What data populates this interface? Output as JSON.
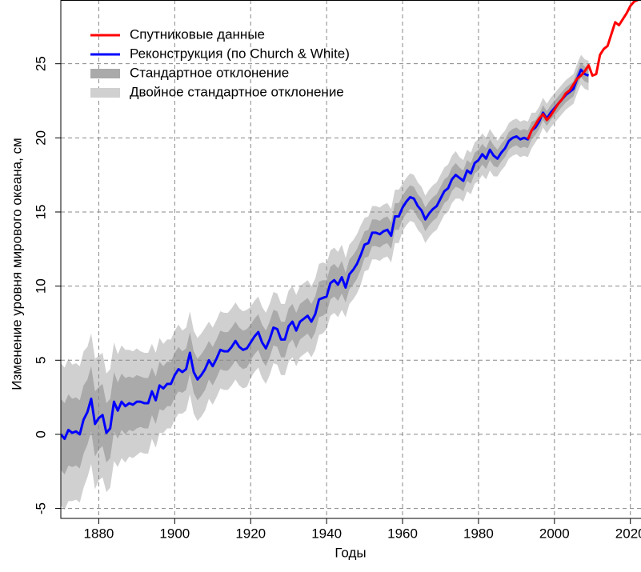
{
  "chart_data": {
    "type": "line",
    "xlabel": "Годы",
    "ylabel": "Изменение уровня мирового океана, см",
    "xlim": [
      1870,
      2022.8
    ],
    "xticks": [
      1880,
      1900,
      1920,
      1940,
      1960,
      1980,
      2000,
      2020
    ],
    "ylim": [
      -5.67,
      29.3
    ],
    "yticks": [
      -5,
      0,
      5,
      10,
      15,
      20,
      25
    ],
    "grid": true,
    "legend": "top-left",
    "series": [
      {
        "name": "Спутниковые данные",
        "color": "#ff0000",
        "x": [
          1993,
          1994,
          1995,
          1996,
          1997,
          1998,
          1999,
          2000,
          2001,
          2002,
          2003,
          2004,
          2005,
          2006,
          2007,
          2008,
          2009,
          2010,
          2011,
          2012,
          2013,
          2014,
          2015,
          2016,
          2017,
          2018,
          2019,
          2020,
          2021,
          2022
        ],
        "values": [
          19.9,
          20.5,
          20.9,
          21.3,
          21.6,
          21.2,
          21.5,
          21.9,
          22.3,
          22.6,
          23.0,
          23.2,
          23.6,
          24.0,
          24.2,
          24.5,
          24.9,
          24.2,
          24.3,
          25.6,
          26.0,
          26.2,
          27.0,
          27.8,
          27.6,
          28.0,
          28.4,
          28.9,
          29.2,
          29.3
        ]
      },
      {
        "name": "Реконструкция (по Church & White)",
        "color": "#0000ff",
        "x": [
          1870,
          1871,
          1872,
          1873,
          1874,
          1875,
          1876,
          1877,
          1878,
          1879,
          1880,
          1881,
          1882,
          1883,
          1884,
          1885,
          1886,
          1887,
          1888,
          1889,
          1890,
          1891,
          1892,
          1893,
          1894,
          1895,
          1896,
          1897,
          1898,
          1899,
          1900,
          1901,
          1902,
          1903,
          1904,
          1905,
          1906,
          1907,
          1908,
          1909,
          1910,
          1911,
          1912,
          1913,
          1914,
          1915,
          1916,
          1917,
          1918,
          1919,
          1920,
          1921,
          1922,
          1923,
          1924,
          1925,
          1926,
          1927,
          1928,
          1929,
          1930,
          1931,
          1932,
          1933,
          1934,
          1935,
          1936,
          1937,
          1938,
          1939,
          1940,
          1941,
          1942,
          1943,
          1944,
          1945,
          1946,
          1947,
          1948,
          1949,
          1950,
          1951,
          1952,
          1953,
          1954,
          1955,
          1956,
          1957,
          1958,
          1959,
          1960,
          1961,
          1962,
          1963,
          1964,
          1965,
          1966,
          1967,
          1968,
          1969,
          1970,
          1971,
          1972,
          1973,
          1974,
          1975,
          1976,
          1977,
          1978,
          1979,
          1980,
          1981,
          1982,
          1983,
          1984,
          1985,
          1986,
          1987,
          1988,
          1989,
          1990,
          1991,
          1992,
          1993,
          1994,
          1995,
          1996,
          1997,
          1998,
          1999,
          2000,
          2001,
          2002,
          2003,
          2004,
          2005,
          2006,
          2007,
          2008,
          2009
        ],
        "values": [
          0,
          -0.3,
          0.3,
          0.1,
          0.2,
          0,
          1.0,
          1.5,
          2.4,
          0.7,
          1.1,
          1.3,
          0.1,
          0.4,
          2.2,
          1.6,
          2.2,
          1.9,
          2.1,
          2.0,
          2.2,
          2.2,
          2.1,
          2.1,
          2.9,
          2.3,
          3.3,
          3.1,
          3.4,
          3.4,
          4.0,
          4.4,
          4.2,
          4.4,
          5.5,
          4.2,
          3.7,
          4.0,
          4.4,
          5.0,
          4.6,
          5.1,
          5.7,
          5.6,
          5.6,
          5.9,
          6.3,
          5.9,
          5.7,
          5.8,
          6.2,
          6.6,
          6.9,
          6.2,
          5.8,
          6.4,
          7.2,
          7.1,
          6.4,
          6.4,
          7.3,
          7.6,
          7.0,
          7.6,
          7.8,
          8.0,
          7.6,
          8.1,
          9.1,
          9.2,
          9.3,
          10.2,
          10.4,
          10.1,
          10.6,
          9.9,
          10.8,
          11.1,
          11.5,
          12.1,
          12.8,
          12.9,
          13.6,
          13.6,
          13.5,
          13.7,
          13.8,
          13.4,
          14.7,
          14.7,
          15.3,
          15.7,
          16.0,
          15.9,
          15.4,
          15.1,
          14.5,
          14.9,
          15.2,
          15.4,
          15.9,
          16.4,
          16.6,
          17.2,
          17.5,
          17.3,
          17.1,
          17.8,
          17.6,
          18.3,
          18.5,
          18.9,
          18.6,
          19.2,
          18.8,
          18.6,
          19.0,
          19.3,
          19.8,
          20.0,
          20.1,
          19.9,
          20.0,
          19.9,
          20.5,
          20.7,
          21.1,
          21.7,
          21.3,
          21.7,
          22.0,
          22.3,
          22.6,
          22.9,
          23.1,
          23.3,
          24.0,
          24.6,
          24.3,
          24.2
        ],
        "sd": [
          2.4,
          2.4,
          2.4,
          2.3,
          2.3,
          2.3,
          2.3,
          2.2,
          2.2,
          2.2,
          2.1,
          2.1,
          2.0,
          2.0,
          2.0,
          1.9,
          1.9,
          1.9,
          1.8,
          1.8,
          1.8,
          1.7,
          1.7,
          1.7,
          1.6,
          1.6,
          1.6,
          1.5,
          1.5,
          1.5,
          1.5,
          1.5,
          1.4,
          1.4,
          1.4,
          1.4,
          1.4,
          1.4,
          1.4,
          1.3,
          1.3,
          1.3,
          1.3,
          1.3,
          1.3,
          1.3,
          1.3,
          1.3,
          1.3,
          1.3,
          1.2,
          1.2,
          1.2,
          1.2,
          1.2,
          1.2,
          1.2,
          1.2,
          1.2,
          1.2,
          1.2,
          1.2,
          1.2,
          1.2,
          1.2,
          1.2,
          1.2,
          1.2,
          1.2,
          1.2,
          1.1,
          1.1,
          1.1,
          1.1,
          1.1,
          1.0,
          1.0,
          1.0,
          1.0,
          1.0,
          0.9,
          0.9,
          0.9,
          0.9,
          0.9,
          0.9,
          0.9,
          0.9,
          0.9,
          0.9,
          0.8,
          0.8,
          0.8,
          0.8,
          0.8,
          0.8,
          0.8,
          0.8,
          0.8,
          0.8,
          0.8,
          0.8,
          0.8,
          0.8,
          0.8,
          0.7,
          0.7,
          0.7,
          0.7,
          0.7,
          0.7,
          0.7,
          0.7,
          0.7,
          0.7,
          0.6,
          0.6,
          0.6,
          0.6,
          0.6,
          0.6,
          0.6,
          0.6,
          0.6,
          0.6,
          0.5,
          0.5,
          0.5,
          0.5,
          0.5,
          0.5,
          0.5,
          0.5,
          0.5,
          0.5,
          0.5,
          0.5,
          0.5,
          0.5,
          0.5
        ]
      }
    ],
    "bands": [
      {
        "name": "Стандартное отклонение",
        "color": "#aaaaaa"
      },
      {
        "name": "Двойное стандартное отклонение",
        "color": "#d0d0d0"
      }
    ]
  }
}
